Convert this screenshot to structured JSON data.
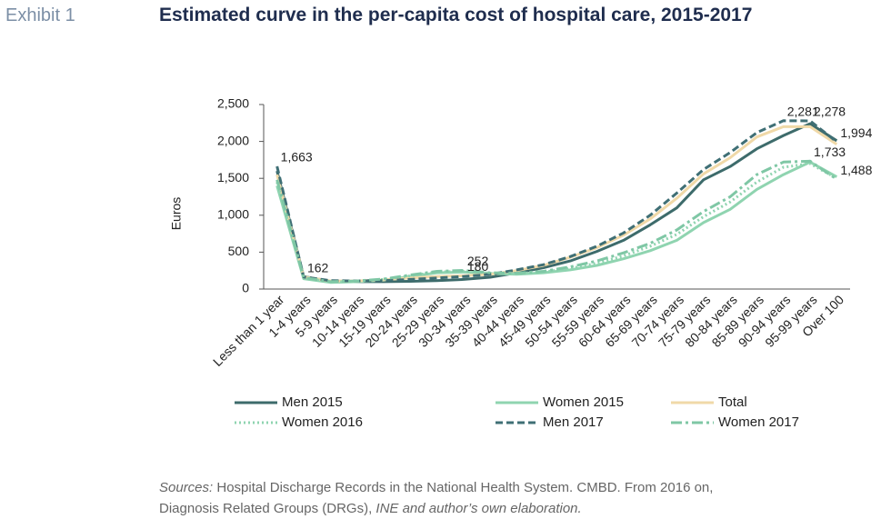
{
  "exhibit": "Exhibit 1",
  "chart_data": {
    "type": "line",
    "title": "Estimated curve in the per-capita cost of hospital care, 2015-2017",
    "y_label": "Euros",
    "categories": [
      "Less than 1 year",
      "1-4 years",
      "5-9 years",
      "10-14 years",
      "15-19 years",
      "20-24 years",
      "25-29 years",
      "30-34 years",
      "35-39 years",
      "40-44 years",
      "45-49 years",
      "50-54 years",
      "55-59 years",
      "60-64 years",
      "65-69 years",
      "70-74 years",
      "75-79 years",
      "80-84 years",
      "85-89 years",
      "90-94 years",
      "95-99 years",
      "Over 100"
    ],
    "ylim": [
      0,
      2500
    ],
    "yticks": [
      0,
      500,
      {
        "value": 1000,
        "label": "1,000"
      },
      {
        "value": 1500,
        "label": "1,500"
      },
      {
        "value": 2000,
        "label": "2,000"
      },
      {
        "value": 2500,
        "label": "2,500"
      }
    ],
    "series": [
      {
        "name": "Men 2015",
        "color": "#3d6b6b",
        "style": "solid",
        "values": [
          1600,
          170,
          105,
          100,
          100,
          105,
          115,
          130,
          160,
          220,
          290,
          380,
          510,
          660,
          870,
          1100,
          1480,
          1660,
          1900,
          2080,
          2240,
          2010
        ]
      },
      {
        "name": "Women 2015",
        "color": "#8fd4b0",
        "style": "solid",
        "values": [
          1400,
          140,
          90,
          100,
          120,
          170,
          220,
          230,
          210,
          200,
          220,
          260,
          320,
          410,
          520,
          660,
          900,
          1080,
          1350,
          1550,
          1720,
          1520
        ]
      },
      {
        "name": "Total",
        "color": "#f0d9a8",
        "style": "solid",
        "values": [
          1550,
          165,
          110,
          110,
          125,
          150,
          170,
          180,
          200,
          250,
          320,
          430,
          560,
          730,
          950,
          1230,
          1560,
          1780,
          2060,
          2200,
          2200,
          1960
        ],
        "value_labels": [
          null,
          null,
          null,
          null,
          null,
          null,
          null,
          "180",
          null,
          null,
          null,
          null,
          null,
          null,
          null,
          null,
          null,
          null,
          null,
          null,
          null,
          null
        ]
      },
      {
        "name": "Women 2016",
        "color": "#8fd4b0",
        "style": "dotted",
        "values": [
          1450,
          150,
          95,
          105,
          130,
          180,
          230,
          240,
          215,
          210,
          230,
          280,
          350,
          450,
          580,
          740,
          980,
          1180,
          1450,
          1650,
          1700,
          1500
        ]
      },
      {
        "name": "Men 2017",
        "color": "#3f6f75",
        "style": "dashed",
        "values": [
          1663,
          162,
          115,
          110,
          115,
          130,
          150,
          170,
          200,
          260,
          330,
          440,
          580,
          760,
          1000,
          1300,
          1620,
          1850,
          2120,
          2281,
          2278,
          1994
        ],
        "value_labels": [
          "1,663",
          "162",
          null,
          null,
          null,
          null,
          null,
          null,
          null,
          null,
          null,
          null,
          null,
          null,
          null,
          null,
          null,
          null,
          null,
          "2,281",
          "2,278",
          "1,994"
        ]
      },
      {
        "name": "Women 2017",
        "color": "#7fc7a5",
        "style": "dashdot",
        "values": [
          1480,
          155,
          100,
          110,
          135,
          190,
          240,
          252,
          220,
          215,
          240,
          300,
          380,
          490,
          620,
          800,
          1050,
          1250,
          1550,
          1720,
          1733,
          1488
        ],
        "value_labels": [
          null,
          null,
          null,
          null,
          null,
          null,
          null,
          "252",
          null,
          null,
          null,
          null,
          null,
          null,
          null,
          null,
          null,
          null,
          null,
          null,
          "1,733",
          "1,488"
        ]
      }
    ]
  },
  "source": {
    "lines": [
      [
        {
          "text": "Sources:",
          "italic": true
        },
        {
          "text": " Hospital Discharge Records in the National Health System. CMBD. From 2016 on,",
          "italic": false
        }
      ],
      [
        {
          "text": "Diagnosis Related Groups (DRGs), ",
          "italic": false
        },
        {
          "text": "INE and author’s own elaboration.",
          "italic": true
        }
      ]
    ]
  }
}
